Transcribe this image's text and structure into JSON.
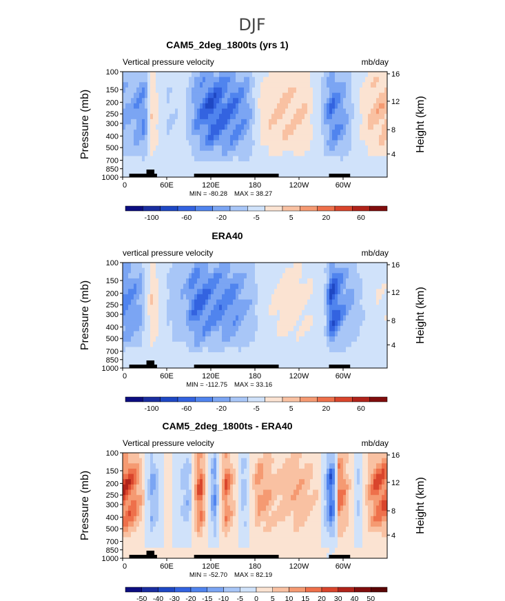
{
  "figure": {
    "season": "DJF"
  },
  "chart_data": [
    {
      "type": "heatmap",
      "title": "CAM5_2deg_1800ts (yrs 1)",
      "variable": "Vertical pressure velocity",
      "units": "mb/day",
      "ylabel": "Pressure (mb)",
      "y2label": "Height (km)",
      "pressure_ticks": [
        "100",
        "150",
        "200",
        "250",
        "300",
        "400",
        "500",
        "700",
        "850",
        "1000"
      ],
      "height_ticks": [
        "16",
        "12",
        "8",
        "4"
      ],
      "lon_ticks": [
        "0",
        "60E",
        "120E",
        "180",
        "120W",
        "60W"
      ],
      "min_label": "MIN = -80.28",
      "max_label": "MAX = 38.27",
      "colorbar_labels": [
        "-100",
        "-60",
        "-20",
        "-5",
        "5",
        "20",
        "60"
      ],
      "palette": [
        "#0c0d80",
        "#1a2ea0",
        "#1f48c4",
        "#3363e0",
        "#5084ee",
        "#7ba5f3",
        "#a8c6f7",
        "#d0e2fa",
        "#fbe3d2",
        "#f9c1a2",
        "#f59a72",
        "#ee704b",
        "#d9452c",
        "#b0231a",
        "#800d0d"
      ],
      "pattern": [
        {
          "lon": 10,
          "v": -30
        },
        {
          "lon": 30,
          "v": -45
        },
        {
          "lon": 40,
          "v": 25
        },
        {
          "lon": 60,
          "v": -10
        },
        {
          "lon": 85,
          "v": -5
        },
        {
          "lon": 100,
          "v": -40
        },
        {
          "lon": 120,
          "v": -70
        },
        {
          "lon": 150,
          "v": -55
        },
        {
          "lon": 170,
          "v": -35
        },
        {
          "lon": 190,
          "v": 20
        },
        {
          "lon": 220,
          "v": 30
        },
        {
          "lon": 250,
          "v": 22
        },
        {
          "lon": 270,
          "v": -10
        },
        {
          "lon": 285,
          "v": -55
        },
        {
          "lon": 300,
          "v": -35
        },
        {
          "lon": 320,
          "v": 5
        },
        {
          "lon": 345,
          "v": 35
        }
      ]
    },
    {
      "type": "heatmap",
      "title": "ERA40",
      "variable": "vertical pressure velocity",
      "units": "mb/day",
      "ylabel": "Pressure (mb)",
      "y2label": "Height (km)",
      "pressure_ticks": [
        "100",
        "150",
        "200",
        "250",
        "300",
        "400",
        "500",
        "700",
        "850",
        "1000"
      ],
      "height_ticks": [
        "16",
        "12",
        "8",
        "4"
      ],
      "lon_ticks": [
        "0",
        "60E",
        "120E",
        "180",
        "120W",
        "60W"
      ],
      "min_label": "MIN = -112.75",
      "max_label": "MAX = 33.16",
      "colorbar_labels": [
        "-100",
        "-60",
        "-20",
        "-5",
        "5",
        "20",
        "60"
      ],
      "palette": [
        "#0c0d80",
        "#1a2ea0",
        "#1f48c4",
        "#3363e0",
        "#5084ee",
        "#7ba5f3",
        "#a8c6f7",
        "#d0e2fa",
        "#fbe3d2",
        "#f9c1a2",
        "#f59a72",
        "#ee704b",
        "#d9452c",
        "#b0231a",
        "#800d0d"
      ],
      "pattern": [
        {
          "lon": 10,
          "v": -45
        },
        {
          "lon": 25,
          "v": -30
        },
        {
          "lon": 40,
          "v": 25
        },
        {
          "lon": 60,
          "v": -10
        },
        {
          "lon": 85,
          "v": -25
        },
        {
          "lon": 100,
          "v": -60
        },
        {
          "lon": 120,
          "v": -50
        },
        {
          "lon": 150,
          "v": -45
        },
        {
          "lon": 175,
          "v": -20
        },
        {
          "lon": 195,
          "v": 5
        },
        {
          "lon": 225,
          "v": 18
        },
        {
          "lon": 255,
          "v": 10
        },
        {
          "lon": 275,
          "v": -8
        },
        {
          "lon": 285,
          "v": -80
        },
        {
          "lon": 300,
          "v": -40
        },
        {
          "lon": 320,
          "v": -15
        },
        {
          "lon": 345,
          "v": 8
        }
      ]
    },
    {
      "type": "heatmap",
      "title": "CAM5_2deg_1800ts - ERA40",
      "variable": "Vertical pressure velocity",
      "units": "mb/day",
      "ylabel": "Pressure (mb)",
      "y2label": "Height (km)",
      "pressure_ticks": [
        "100",
        "150",
        "200",
        "250",
        "300",
        "400",
        "500",
        "700",
        "850",
        "1000"
      ],
      "height_ticks": [
        "16",
        "12",
        "8",
        "4"
      ],
      "lon_ticks": [
        "0",
        "60E",
        "120E",
        "180",
        "120W",
        "60W"
      ],
      "min_label": "MIN = -52.70",
      "max_label": "MAX = 82.19",
      "colorbar_labels": [
        "-50",
        "-40",
        "-30",
        "-20",
        "-15",
        "-10",
        "-5",
        "0",
        "5",
        "10",
        "15",
        "20",
        "30",
        "40",
        "50"
      ],
      "palette": [
        "#0c0d80",
        "#1a2ea0",
        "#1f48c4",
        "#3363e0",
        "#5084ee",
        "#7ba5f3",
        "#a8c6f7",
        "#d0e2fa",
        "#fbe3d2",
        "#f9c1a2",
        "#f59a72",
        "#ee704b",
        "#d9452c",
        "#b0231a",
        "#800d0d",
        "#5a0606"
      ],
      "pattern": [
        {
          "lon": 8,
          "v": 35
        },
        {
          "lon": 25,
          "v": 15
        },
        {
          "lon": 40,
          "v": -20
        },
        {
          "lon": 60,
          "v": 5
        },
        {
          "lon": 90,
          "v": -15
        },
        {
          "lon": 105,
          "v": 35
        },
        {
          "lon": 125,
          "v": -25
        },
        {
          "lon": 140,
          "v": 30
        },
        {
          "lon": 165,
          "v": -15
        },
        {
          "lon": 185,
          "v": 20
        },
        {
          "lon": 210,
          "v": 10
        },
        {
          "lon": 240,
          "v": 15
        },
        {
          "lon": 270,
          "v": 5
        },
        {
          "lon": 285,
          "v": -40
        },
        {
          "lon": 295,
          "v": 30
        },
        {
          "lon": 320,
          "v": -10
        },
        {
          "lon": 345,
          "v": 30
        }
      ]
    }
  ]
}
